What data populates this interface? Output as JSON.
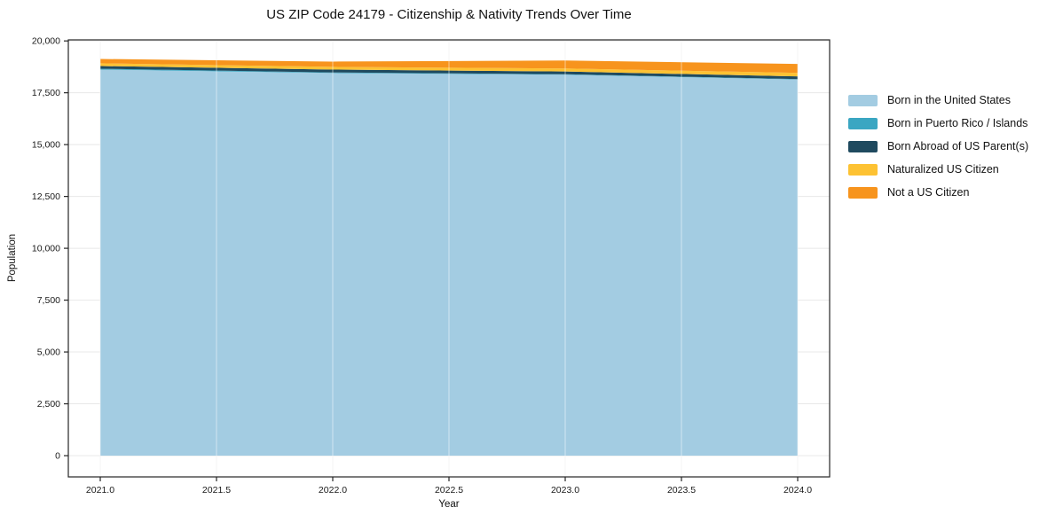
{
  "title": "US ZIP Code 24179 - Citizenship & Nativity Trends Over Time",
  "chart_data": {
    "type": "area",
    "stacked": true,
    "title": "US ZIP Code 24179 - Citizenship & Nativity Trends Over Time",
    "xlabel": "Year",
    "ylabel": "Population",
    "x": [
      2021,
      2022,
      2023,
      2024
    ],
    "series": [
      {
        "name": "Born in the United States",
        "color": "#a3cce2",
        "values": [
          18620,
          18450,
          18370,
          18140
        ]
      },
      {
        "name": "Born in Puerto Rico / Islands",
        "color": "#3aa6c2",
        "values": [
          40,
          30,
          25,
          20
        ]
      },
      {
        "name": "Born Abroad of US Parent(s)",
        "color": "#1f4a5f",
        "values": [
          130,
          140,
          130,
          130
        ]
      },
      {
        "name": "Naturalized US Citizen",
        "color": "#fdc233",
        "values": [
          130,
          130,
          145,
          170
        ]
      },
      {
        "name": "Not a US Citizen",
        "color": "#f7941d",
        "values": [
          210,
          255,
          385,
          430
        ]
      }
    ],
    "xlim": [
      2020.8626,
      2024.1374
    ],
    "ylim": [
      -1025,
      20050
    ],
    "xticks": {
      "values": [
        2021.0,
        2021.5,
        2022.0,
        2022.5,
        2023.0,
        2023.5,
        2024.0
      ],
      "labels": [
        "2021.0",
        "2021.5",
        "2022.0",
        "2022.5",
        "2023.0",
        "2023.5",
        "2024.0"
      ]
    },
    "yticks": {
      "values": [
        0,
        2500,
        5000,
        7500,
        10000,
        12500,
        15000,
        17500,
        20000
      ],
      "labels": [
        "0",
        "2,500",
        "5,000",
        "7,500",
        "10,000",
        "12,500",
        "15,000",
        "17,500",
        "20,000"
      ]
    },
    "grid": true,
    "legend_position": "outside-right",
    "colors": {
      "grid": "#e8e8e8",
      "grid_overlay": "rgba(255,255,255,0.5)",
      "spine": "#262626",
      "tick_text": "#1a1a1a"
    }
  }
}
